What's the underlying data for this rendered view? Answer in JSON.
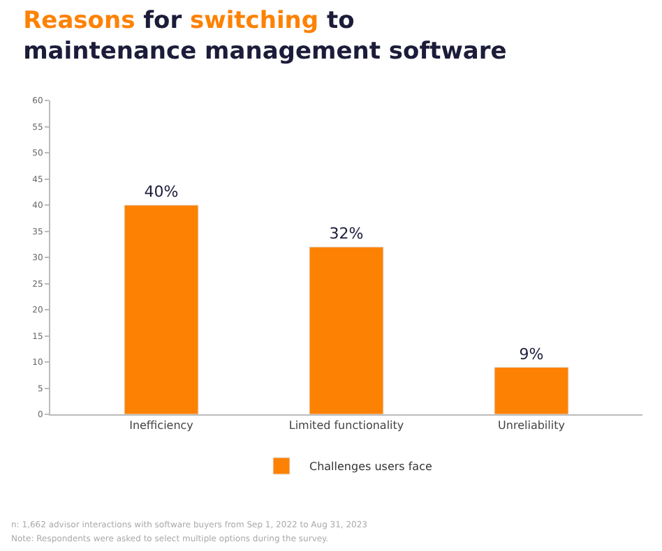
{
  "chart_data": {
    "type": "bar",
    "title": "Reasons for switching to maintenance management software",
    "categories": [
      "Inefficiency",
      "Limited functionality",
      "Unreliability"
    ],
    "series": [
      {
        "name": "Challenges users face",
        "color": "#fd8204",
        "values": [
          40,
          32,
          9
        ],
        "value_labels": [
          "40%",
          "32%",
          "9%"
        ]
      }
    ],
    "ylim": [
      0,
      60
    ],
    "yticks": [
      0,
      5,
      10,
      15,
      20,
      25,
      30,
      35,
      40,
      45,
      50,
      55,
      60
    ],
    "legend": "bottom",
    "annotations": [
      "n: 1,662 advisor interactions with software buyers from Sep 1, 2022 to Aug 31, 2023",
      "Note: Respondents were asked to select multiple options during the survey."
    ]
  }
}
